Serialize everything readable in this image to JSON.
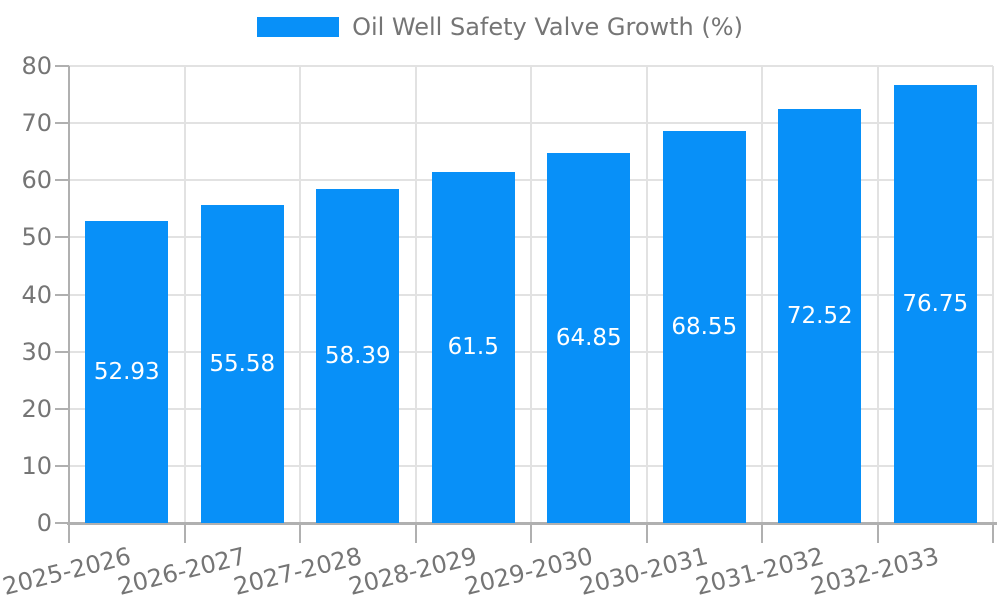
{
  "chart_data": {
    "type": "bar",
    "title": "Oil Well Safety Valve Growth (%)",
    "legend_entries": [
      "Oil Well Safety Valve Growth (%)"
    ],
    "legend_position": "top-center",
    "categories": [
      "2025-2026",
      "2026-2027",
      "2027-2028",
      "2028-2029",
      "2029-2030",
      "2030-2031",
      "2031-2032",
      "2032-2033"
    ],
    "values": [
      52.93,
      55.58,
      58.39,
      61.5,
      64.85,
      68.55,
      72.52,
      76.75
    ],
    "xlabel": "",
    "ylabel": "",
    "ylim": [
      0,
      80
    ],
    "yticks": [
      0,
      10,
      20,
      30,
      40,
      50,
      60,
      70,
      80
    ],
    "grid": true,
    "x_tick_rotation_deg": 14,
    "value_labels_inside_bars": true,
    "colors": {
      "bar": "#0890F8",
      "bar_label": "#FFFFFF",
      "grid": "#E2E2E2",
      "axis": "#B0B0B0",
      "tick_label": "#757575",
      "legend_text": "#757575",
      "background": "#FFFFFF"
    }
  }
}
